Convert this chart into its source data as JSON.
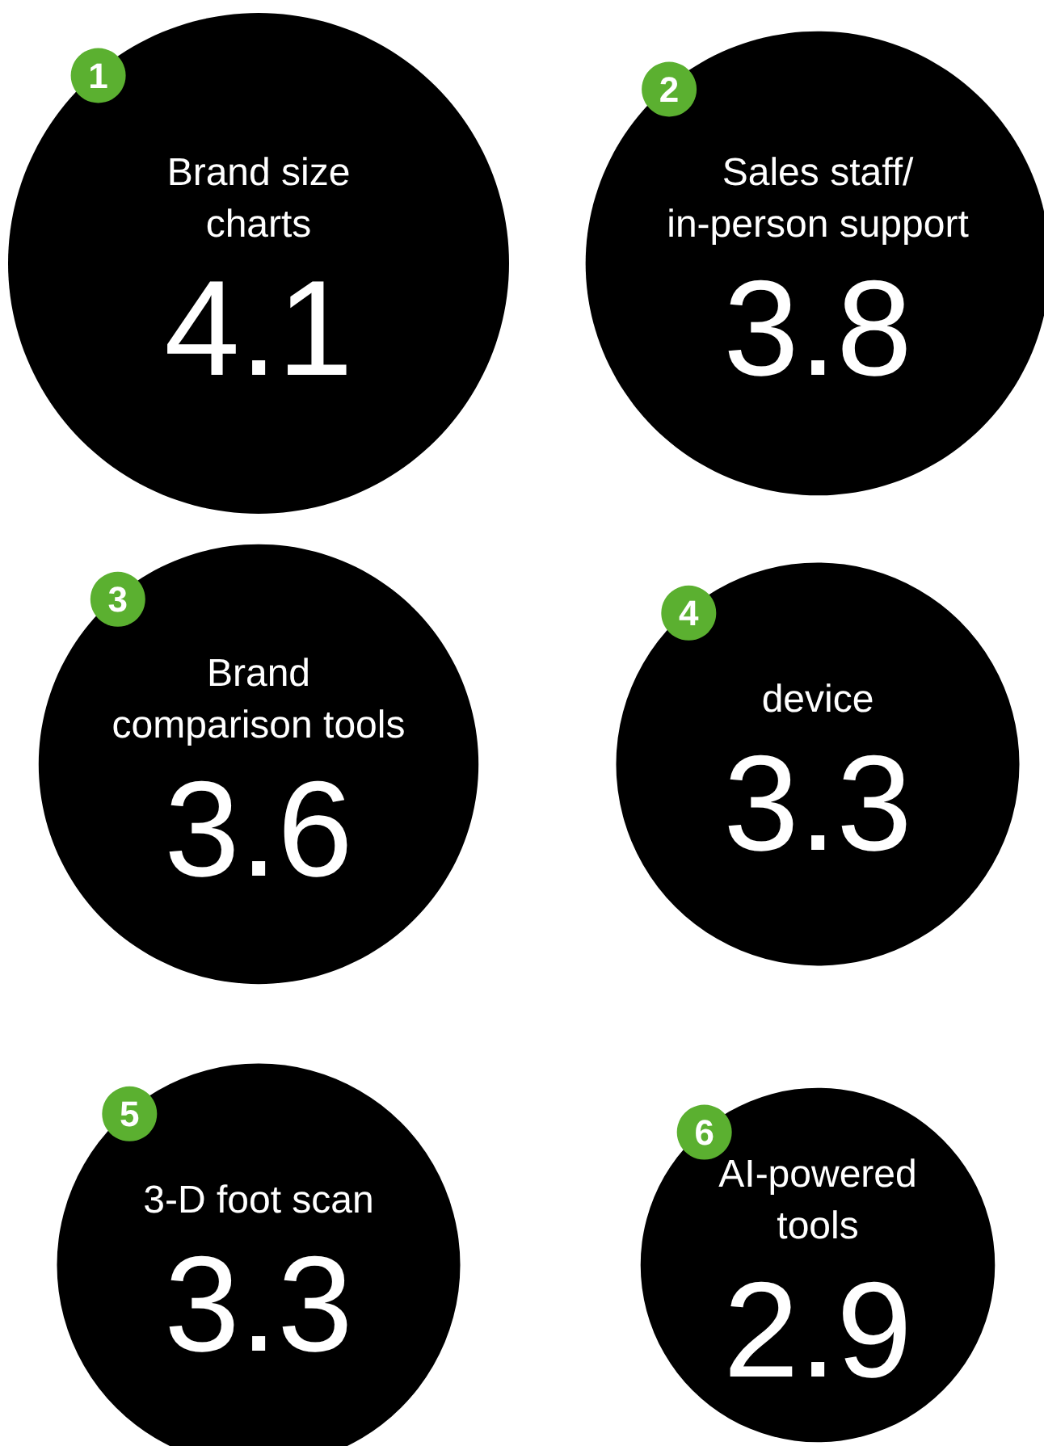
{
  "chart_data": {
    "type": "other",
    "categories": [
      "Brand size\ncharts",
      "Sales staff/\nin-person support",
      "Brand\ncomparison tools",
      "device",
      "3-D foot scan",
      "AI-powered\ntools"
    ],
    "values": [
      4.1,
      3.8,
      3.6,
      3.3,
      3.3,
      2.9
    ],
    "color": "#000000",
    "data_labels": true,
    "annotations": [
      "1",
      "2",
      "3",
      "4",
      "5",
      "6"
    ]
  }
}
